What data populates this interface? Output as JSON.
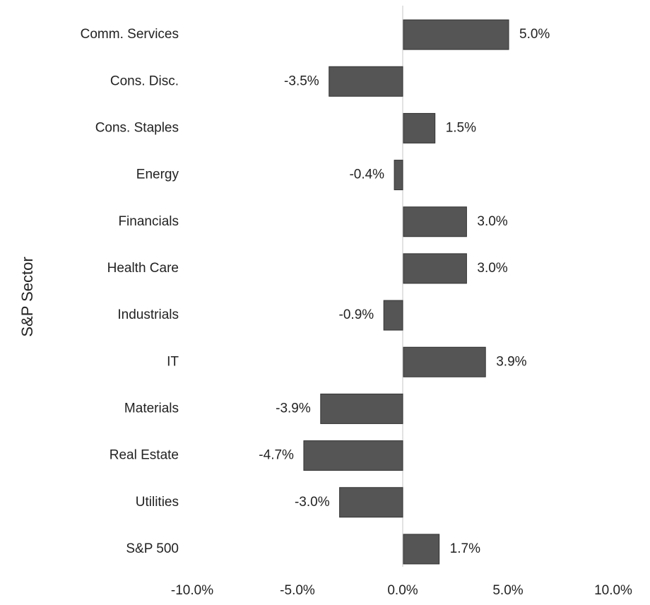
{
  "chart_data": {
    "type": "barh",
    "y_label": "S&P Sector",
    "categories": [
      "Comm. Services",
      "Cons. Disc.",
      "Cons. Staples",
      "Energy",
      "Financials",
      "Health Care",
      "Industrials",
      "IT",
      "Materials",
      "Real Estate",
      "Utilities",
      "S&P 500"
    ],
    "values": [
      5.0,
      -3.5,
      1.5,
      -0.4,
      3.0,
      3.0,
      -0.9,
      3.9,
      -3.9,
      -4.7,
      -3.0,
      1.7
    ],
    "value_labels": [
      "5.0%",
      "-3.5%",
      "1.5%",
      "-0.4%",
      "3.0%",
      "3.0%",
      "-0.9%",
      "3.9%",
      "-3.9%",
      "-4.7%",
      "-3.0%",
      "1.7%"
    ],
    "color": "#555555",
    "xlim": [
      -10,
      10
    ],
    "xticks": [
      {
        "value": -10,
        "label": "-10.0%"
      },
      {
        "value": -5,
        "label": "-5.0%"
      },
      {
        "value": 0,
        "label": "0.0%"
      },
      {
        "value": 5,
        "label": "5.0%"
      },
      {
        "value": 10,
        "label": "10.0%"
      }
    ]
  }
}
